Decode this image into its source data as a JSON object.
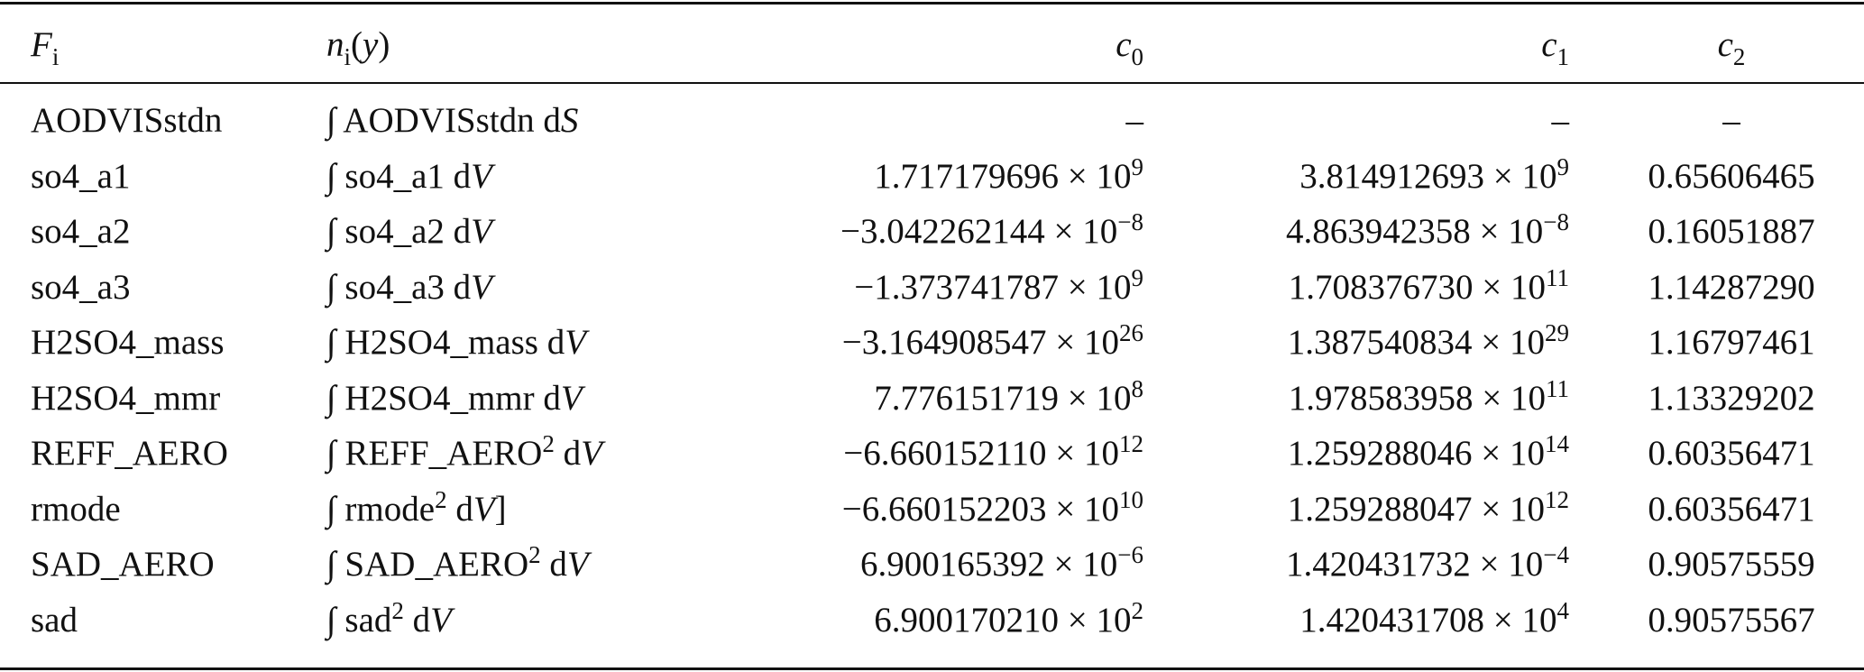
{
  "table": {
    "header": {
      "F": [
        {
          "italic": "F"
        },
        {
          "sub": "i"
        }
      ],
      "n": [
        {
          "italic": "n"
        },
        {
          "sub": "i"
        },
        {
          "text": "("
        },
        {
          "italic": "y"
        },
        {
          "text": ")"
        }
      ],
      "c0": [
        {
          "italic": "c"
        },
        {
          "sub": "0"
        }
      ],
      "c1": [
        {
          "italic": "c"
        },
        {
          "sub": "1"
        }
      ],
      "c2": [
        {
          "italic": "c"
        },
        {
          "sub": "2"
        }
      ]
    },
    "rows": [
      {
        "F": "AODVISstdn",
        "n": [
          {
            "text": "∫ AODVISstdn d"
          },
          {
            "italic": "S"
          }
        ],
        "c0": "–",
        "c1": "–",
        "c2": "–"
      },
      {
        "F": "so4_a1",
        "n": [
          {
            "text": "∫ so4_a1 d"
          },
          {
            "italic": "V"
          }
        ],
        "c0": [
          {
            "text": "1.717179696 × 10"
          },
          {
            "sup": "9"
          }
        ],
        "c1": [
          {
            "text": "3.814912693 × 10"
          },
          {
            "sup": "9"
          }
        ],
        "c2": "0.65606465"
      },
      {
        "F": "so4_a2",
        "n": [
          {
            "text": "∫ so4_a2 d"
          },
          {
            "italic": "V"
          }
        ],
        "c0": [
          {
            "text": "−3.042262144 × 10"
          },
          {
            "sup": "−8"
          }
        ],
        "c1": [
          {
            "text": "4.863942358 × 10"
          },
          {
            "sup": "−8"
          }
        ],
        "c2": "0.16051887"
      },
      {
        "F": "so4_a3",
        "n": [
          {
            "text": "∫ so4_a3 d"
          },
          {
            "italic": "V"
          }
        ],
        "c0": [
          {
            "text": "−1.373741787 × 10"
          },
          {
            "sup": "9"
          }
        ],
        "c1": [
          {
            "text": "1.708376730 × 10"
          },
          {
            "sup": "11"
          }
        ],
        "c2": "1.14287290"
      },
      {
        "F": "H2SO4_mass",
        "n": [
          {
            "text": "∫ H2SO4_mass d"
          },
          {
            "italic": "V"
          }
        ],
        "c0": [
          {
            "text": "−3.164908547 × 10"
          },
          {
            "sup": "26"
          }
        ],
        "c1": [
          {
            "text": "1.387540834 × 10"
          },
          {
            "sup": "29"
          }
        ],
        "c2": "1.16797461"
      },
      {
        "F": "H2SO4_mmr",
        "n": [
          {
            "text": "∫ H2SO4_mmr d"
          },
          {
            "italic": "V"
          }
        ],
        "c0": [
          {
            "text": "7.776151719 × 10"
          },
          {
            "sup": "8"
          }
        ],
        "c1": [
          {
            "text": "1.978583958 × 10"
          },
          {
            "sup": "11"
          }
        ],
        "c2": "1.13329202"
      },
      {
        "F": "REFF_AERO",
        "n": [
          {
            "text": "∫ REFF_AERO"
          },
          {
            "sup": "2"
          },
          {
            "text": " d"
          },
          {
            "italic": "V"
          }
        ],
        "c0": [
          {
            "text": "−6.660152110 × 10"
          },
          {
            "sup": "12"
          }
        ],
        "c1": [
          {
            "text": "1.259288046 × 10"
          },
          {
            "sup": "14"
          }
        ],
        "c2": "0.60356471"
      },
      {
        "F": "rmode",
        "n": [
          {
            "text": "∫ rmode"
          },
          {
            "sup": "2"
          },
          {
            "text": " d"
          },
          {
            "italic": "V"
          },
          {
            "text": "]"
          }
        ],
        "c0": [
          {
            "text": "−6.660152203 × 10"
          },
          {
            "sup": "10"
          }
        ],
        "c1": [
          {
            "text": "1.259288047 × 10"
          },
          {
            "sup": "12"
          }
        ],
        "c2": "0.60356471"
      },
      {
        "F": "SAD_AERO",
        "n": [
          {
            "text": "∫ SAD_AERO"
          },
          {
            "sup": "2"
          },
          {
            "text": " d"
          },
          {
            "italic": "V"
          }
        ],
        "c0": [
          {
            "text": "6.900165392 × 10"
          },
          {
            "sup": "−6"
          }
        ],
        "c1": [
          {
            "text": "1.420431732 × 10"
          },
          {
            "sup": "−4"
          }
        ],
        "c2": "0.90575559"
      },
      {
        "F": "sad",
        "n": [
          {
            "text": "∫ sad"
          },
          {
            "sup": "2"
          },
          {
            "text": " d"
          },
          {
            "italic": "V"
          }
        ],
        "c0": [
          {
            "text": "6.900170210 × 10"
          },
          {
            "sup": "2"
          }
        ],
        "c1": [
          {
            "text": "1.420431708 × 10"
          },
          {
            "sup": "4"
          }
        ],
        "c2": "0.90575567"
      }
    ]
  }
}
